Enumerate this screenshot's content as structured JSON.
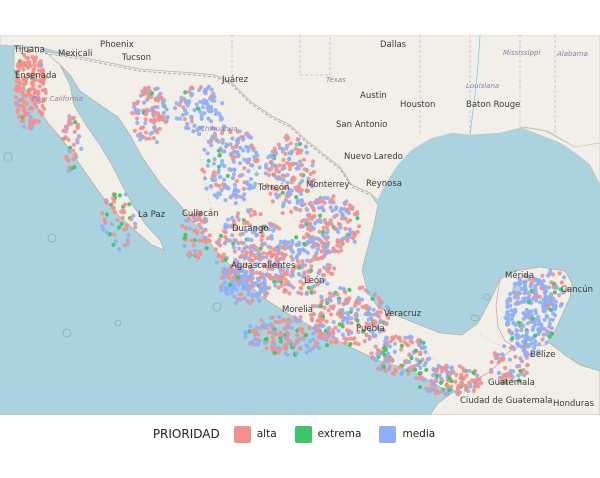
{
  "legend": {
    "title": "PRIORIDAD",
    "items": [
      {
        "label": "alta",
        "color": "#f4908a"
      },
      {
        "label": "extrema",
        "color": "#3ec46a"
      },
      {
        "label": "media",
        "color": "#8fb0f5"
      }
    ]
  },
  "cities": [
    {
      "name": "Phoenix",
      "kind": "city"
    },
    {
      "name": "Dallas",
      "kind": "city"
    },
    {
      "name": "Mexicali",
      "kind": "city"
    },
    {
      "name": "Tucson",
      "kind": "city"
    },
    {
      "name": "Tijuana",
      "kind": "city"
    },
    {
      "name": "Ensenada",
      "kind": "city"
    },
    {
      "name": "Juárez",
      "kind": "city"
    },
    {
      "name": "Austin",
      "kind": "city"
    },
    {
      "name": "Houston",
      "kind": "city"
    },
    {
      "name": "Baton Rouge",
      "kind": "city"
    },
    {
      "name": "San Antonio",
      "kind": "city"
    },
    {
      "name": "Nuevo Laredo",
      "kind": "city"
    },
    {
      "name": "Reynosa",
      "kind": "city"
    },
    {
      "name": "Torreón",
      "kind": "city"
    },
    {
      "name": "Monterrey",
      "kind": "city"
    },
    {
      "name": "La Paz",
      "kind": "city"
    },
    {
      "name": "Culiacán",
      "kind": "city"
    },
    {
      "name": "Durango",
      "kind": "city"
    },
    {
      "name": "Aguascalientes",
      "kind": "city"
    },
    {
      "name": "León",
      "kind": "city"
    },
    {
      "name": "Morelia",
      "kind": "city"
    },
    {
      "name": "Veracruz",
      "kind": "city"
    },
    {
      "name": "Puebla",
      "kind": "city"
    },
    {
      "name": "Mérida",
      "kind": "city"
    },
    {
      "name": "Cancún",
      "kind": "city"
    },
    {
      "name": "Belize",
      "kind": "city"
    },
    {
      "name": "Guatemala",
      "kind": "city"
    },
    {
      "name": "Ciudad de Guatemala",
      "kind": "city"
    },
    {
      "name": "Honduras",
      "kind": "city"
    },
    {
      "name": "Baja California",
      "kind": "state"
    },
    {
      "name": "Chihuahua",
      "kind": "state"
    },
    {
      "name": "Texas",
      "kind": "usstate"
    },
    {
      "name": "Louisiana",
      "kind": "usstate"
    },
    {
      "name": "Mississippi",
      "kind": "usstate"
    },
    {
      "name": "Alabama",
      "kind": "usstate"
    }
  ]
}
